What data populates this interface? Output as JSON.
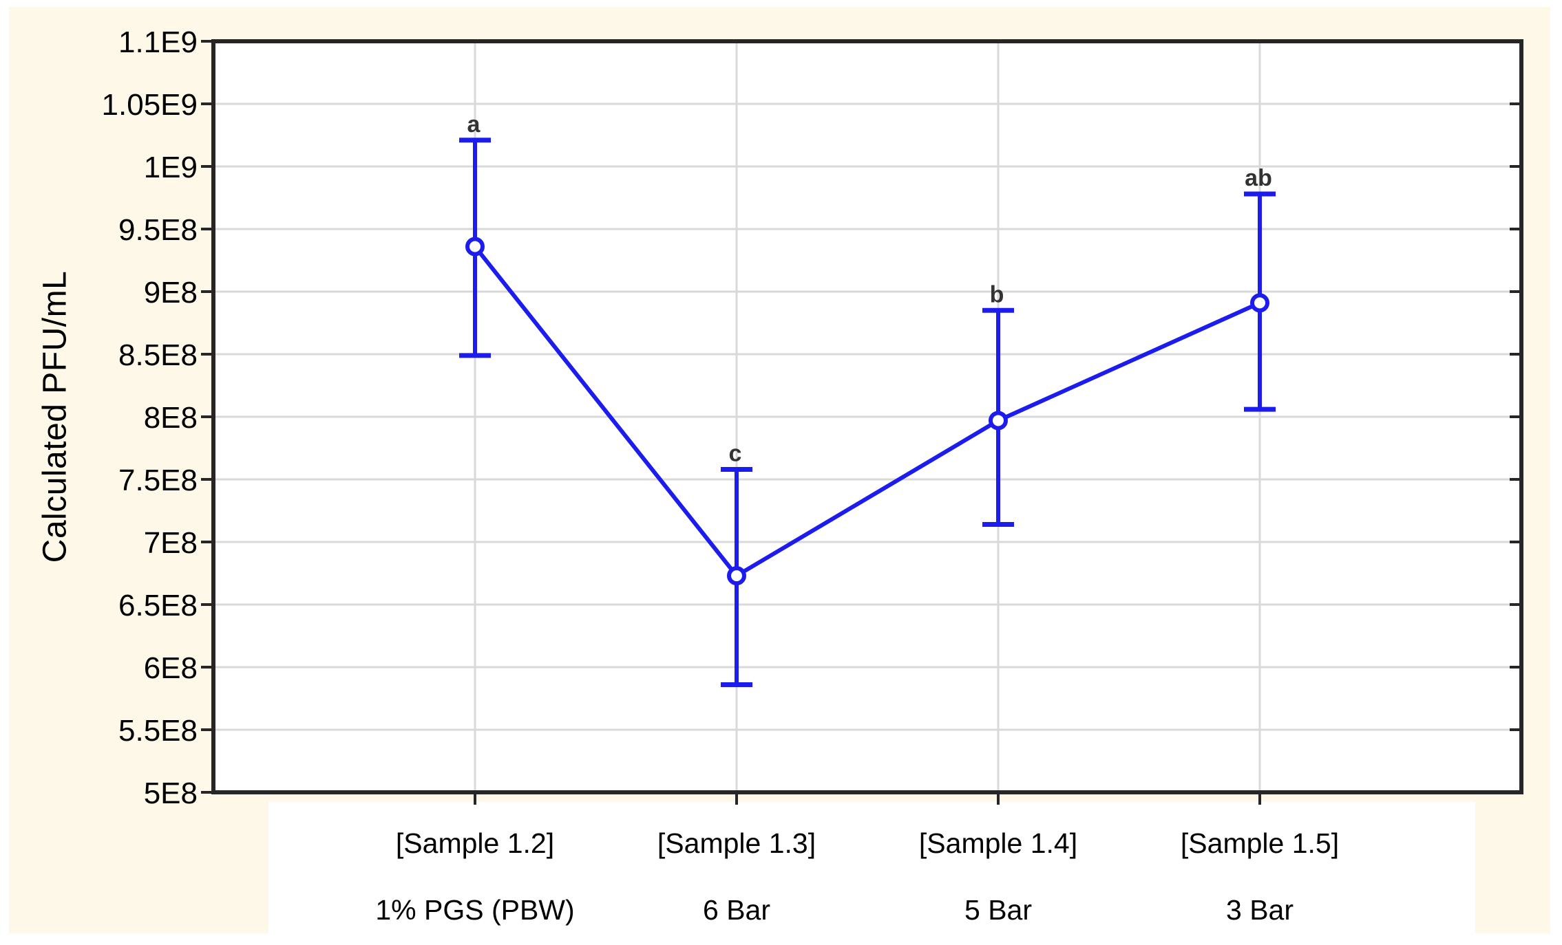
{
  "figure": {
    "background_color": "#fdf8e8",
    "plot_background_color": "#ffffff",
    "grid_color": "#d9d9d9",
    "spine_color": "#262626",
    "series_color": "#1c1cee",
    "letter_color": "#333333",
    "text_color": "#000000"
  },
  "chart_data": {
    "type": "line",
    "title": "",
    "xlabel": "",
    "ylabel": "Calculated PFU/mL",
    "ylim": [
      500000000,
      1100000000
    ],
    "y_tick_labels": [
      "5E8",
      "5.5E8",
      "6E8",
      "6.5E8",
      "7E8",
      "7.5E8",
      "8E8",
      "8.5E8",
      "9E8",
      "9.5E8",
      "1E9",
      "1.05E9",
      "1.1E9"
    ],
    "grid": true,
    "legend": "none",
    "categories": [
      "[Sample 1.2]",
      "[Sample 1.3]",
      "[Sample 1.4]",
      "[Sample 1.5]"
    ],
    "condition_labels": [
      "1% PGS (PBW)",
      "6 Bar",
      "5 Bar",
      "3 Bar"
    ],
    "series": [
      {
        "name": "Calculated PFU/mL",
        "marker": "open-circle",
        "values": [
          936000000,
          673000000,
          797000000,
          891000000
        ],
        "error_upper": [
          1021000000,
          758000000,
          885000000,
          978000000
        ],
        "error_lower": [
          849000000,
          586000000,
          714000000,
          806000000
        ],
        "significance_letters": [
          "a",
          "c",
          "b",
          "ab"
        ]
      }
    ]
  }
}
